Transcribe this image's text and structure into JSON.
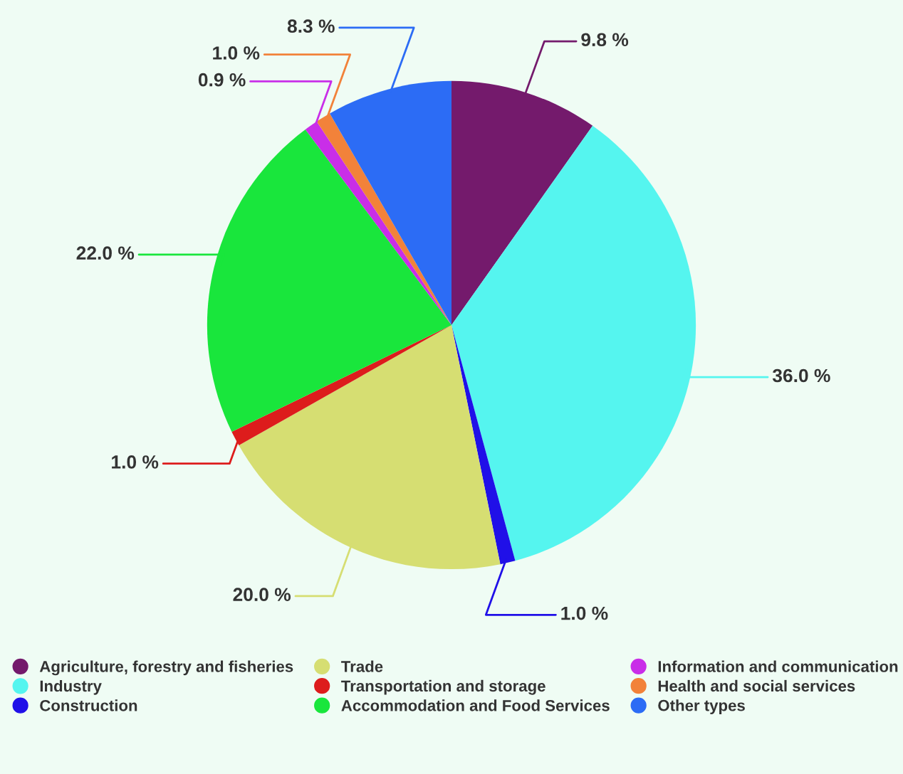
{
  "chart_data": {
    "type": "pie",
    "categories": [
      "Agriculture, forestry and fisheries",
      "Industry",
      "Construction",
      "Trade",
      "Transportation and storage",
      "Accommodation and Food Services",
      "Information and communication",
      "Health and social services",
      "Other types"
    ],
    "values": [
      9.8,
      36.0,
      1.0,
      20.0,
      1.0,
      22.0,
      0.9,
      1.0,
      8.3
    ],
    "colors": [
      "#741a6c",
      "#55f5ef",
      "#2010e8",
      "#d6de72",
      "#dd1c1c",
      "#19e63c",
      "#c92ee8",
      "#f2823a",
      "#2c6cf5"
    ],
    "value_labels": [
      "9.8 %",
      "36.0 %",
      "1.0 %",
      "20.0 %",
      "1.0 %",
      "22.0 %",
      "0.9 %",
      "1.0 %",
      "8.3 %"
    ],
    "legend": "bottom"
  }
}
